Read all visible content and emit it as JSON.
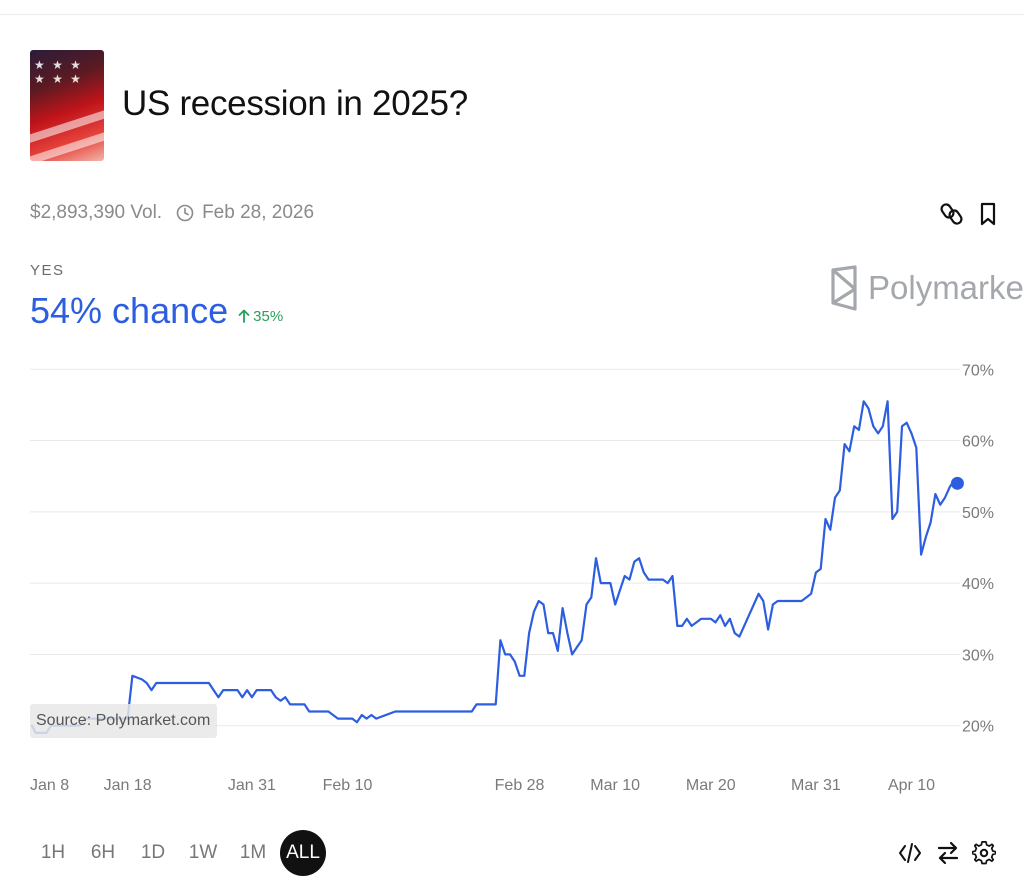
{
  "market": {
    "title": "US recession in 2025?",
    "volume": "$2,893,390 Vol.",
    "end_date": "Feb 28, 2026",
    "outcome": "YES",
    "chance": "54% chance",
    "change": "35%",
    "brand": "Polymarket",
    "source": "Source: Polymarket.com"
  },
  "icons": {
    "thumbnail": "us-flag-recession-image",
    "clock": "clock-icon",
    "link": "link-icon",
    "bookmark": "bookmark-icon",
    "embed": "code-icon",
    "swap": "swap-icon",
    "settings": "gear-icon"
  },
  "colors": {
    "line": "#2d5ee0",
    "up": "#27a05a",
    "grid": "#e9e9e9",
    "active_range_bg": "#111111"
  },
  "ranges": [
    "1H",
    "6H",
    "1D",
    "1W",
    "1M",
    "ALL"
  ],
  "active_range": "ALL",
  "chart_data": {
    "type": "line",
    "y_unit": "%",
    "ylim": [
      18,
      72
    ],
    "y_ticks": [
      "20%",
      "30%",
      "40%",
      "50%",
      "60%",
      "70%"
    ],
    "y_tick_values": [
      20,
      30,
      40,
      50,
      60,
      70
    ],
    "x_tick_labels": [
      "Jan 8",
      "Jan 18",
      "Jan 31",
      "Feb 10",
      "Feb 28",
      "Mar 10",
      "Mar 20",
      "Mar 31",
      "Apr 10"
    ],
    "x_tick_days": [
      0,
      10,
      23,
      33,
      51,
      61,
      71,
      82,
      92
    ],
    "grid": true,
    "series": [
      {
        "values_by_day": [
          [
            0,
            20
          ],
          [
            0.4,
            19
          ],
          [
            1.5,
            19
          ],
          [
            2,
            20
          ],
          [
            5,
            20
          ],
          [
            5.5,
            21
          ],
          [
            10,
            21
          ],
          [
            10.5,
            27
          ],
          [
            11.5,
            26.5
          ],
          [
            12,
            26
          ],
          [
            12.5,
            25
          ],
          [
            13,
            26
          ],
          [
            18.5,
            26
          ],
          [
            19,
            25
          ],
          [
            19.5,
            24
          ],
          [
            20,
            25
          ],
          [
            21.5,
            25
          ],
          [
            22,
            24
          ],
          [
            22.5,
            25
          ],
          [
            23,
            24
          ],
          [
            23.5,
            25
          ],
          [
            25,
            25
          ],
          [
            25.5,
            24
          ],
          [
            26,
            23.5
          ],
          [
            26.5,
            24
          ],
          [
            27,
            23
          ],
          [
            28.5,
            23
          ],
          [
            29,
            22
          ],
          [
            31,
            22
          ],
          [
            32,
            21
          ],
          [
            33.5,
            21
          ],
          [
            34,
            20.5
          ],
          [
            34.5,
            21.5
          ],
          [
            35,
            21
          ],
          [
            35.5,
            21.5
          ],
          [
            36,
            21
          ],
          [
            38,
            22
          ],
          [
            46,
            22
          ],
          [
            46.5,
            23
          ],
          [
            48.5,
            23
          ],
          [
            49,
            32
          ],
          [
            49.5,
            30
          ],
          [
            50,
            30
          ],
          [
            50.5,
            29
          ],
          [
            51,
            27
          ],
          [
            51.5,
            27
          ],
          [
            52,
            33
          ],
          [
            52.5,
            36
          ],
          [
            53,
            37.5
          ],
          [
            53.5,
            37
          ],
          [
            54,
            33
          ],
          [
            54.5,
            33
          ],
          [
            55,
            30.5
          ],
          [
            55.5,
            36.5
          ],
          [
            56,
            33
          ],
          [
            56.5,
            30
          ],
          [
            57,
            31
          ],
          [
            57.5,
            32
          ],
          [
            58,
            37
          ],
          [
            58.5,
            38
          ],
          [
            59,
            43.5
          ],
          [
            59.5,
            40
          ],
          [
            60,
            40
          ],
          [
            60.5,
            40
          ],
          [
            61,
            37
          ],
          [
            61.5,
            39
          ],
          [
            62,
            41
          ],
          [
            62.5,
            40.5
          ],
          [
            63,
            43
          ],
          [
            63.5,
            43.5
          ],
          [
            64,
            41.5
          ],
          [
            64.5,
            40.5
          ],
          [
            65,
            40.5
          ],
          [
            66,
            40.5
          ],
          [
            66.5,
            40
          ],
          [
            67,
            41
          ],
          [
            67.5,
            34
          ],
          [
            68,
            34
          ],
          [
            68.5,
            35
          ],
          [
            69,
            34
          ],
          [
            69.5,
            34.5
          ],
          [
            70,
            35
          ],
          [
            71,
            35
          ],
          [
            71.5,
            34.5
          ],
          [
            72,
            35.5
          ],
          [
            72.5,
            34
          ],
          [
            73,
            35
          ],
          [
            73.5,
            33
          ],
          [
            74,
            32.5
          ],
          [
            74.5,
            34
          ],
          [
            75,
            35.5
          ],
          [
            75.5,
            37
          ],
          [
            76,
            38.5
          ],
          [
            76.5,
            37.5
          ],
          [
            77,
            33.5
          ],
          [
            77.5,
            37
          ],
          [
            78,
            37.5
          ],
          [
            80.5,
            37.5
          ],
          [
            81,
            38
          ],
          [
            81.5,
            38.5
          ],
          [
            82,
            41.5
          ],
          [
            82.5,
            42
          ],
          [
            83,
            49
          ],
          [
            83.5,
            47.5
          ],
          [
            84,
            52
          ],
          [
            84.5,
            53
          ],
          [
            85,
            59.5
          ],
          [
            85.5,
            58.5
          ],
          [
            86,
            62
          ],
          [
            86.5,
            61.5
          ],
          [
            87,
            65.5
          ],
          [
            87.5,
            64.5
          ],
          [
            88,
            62
          ],
          [
            88.5,
            61
          ],
          [
            89,
            62
          ],
          [
            89.5,
            65.5
          ],
          [
            90,
            49
          ],
          [
            90.5,
            50
          ],
          [
            91,
            62
          ],
          [
            91.5,
            62.5
          ],
          [
            92,
            61
          ],
          [
            92.5,
            59
          ],
          [
            93,
            44
          ],
          [
            93.5,
            46.5
          ],
          [
            94,
            48.5
          ],
          [
            94.5,
            52.5
          ],
          [
            95,
            51
          ],
          [
            95.5,
            52
          ],
          [
            96,
            53.5
          ],
          [
            96.5,
            54.5
          ],
          [
            96.8,
            54
          ]
        ]
      }
    ],
    "current_value": 54
  }
}
